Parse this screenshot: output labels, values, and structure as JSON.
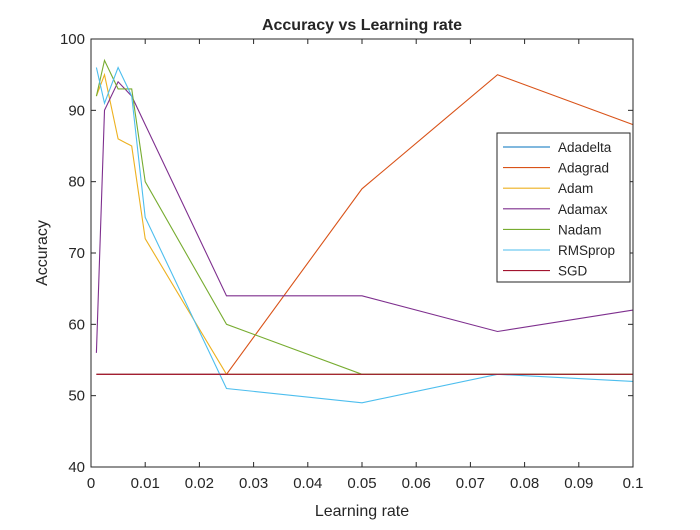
{
  "chart_data": {
    "type": "line",
    "title": "Accuracy vs Learning rate",
    "xlabel": "Learning rate",
    "ylabel": "Accuracy",
    "xlim": [
      0,
      0.1
    ],
    "ylim": [
      40,
      100
    ],
    "xticks": [
      0,
      0.01,
      0.02,
      0.03,
      0.04,
      0.05,
      0.06,
      0.07,
      0.08,
      0.09,
      0.1
    ],
    "xtick_labels": [
      "0",
      "0.01",
      "0.02",
      "0.03",
      "0.04",
      "0.05",
      "0.06",
      "0.07",
      "0.08",
      "0.09",
      "0.1"
    ],
    "yticks": [
      40,
      50,
      60,
      70,
      80,
      90,
      100
    ],
    "ytick_labels": [
      "40",
      "50",
      "60",
      "70",
      "80",
      "90",
      "100"
    ],
    "grid": false,
    "legend_position": "right",
    "x": [
      0.001,
      0.0025,
      0.005,
      0.0075,
      0.01,
      0.025,
      0.05,
      0.075,
      0.1
    ],
    "series": [
      {
        "name": "Adadelta",
        "color": "#0072BD",
        "values": [
          53,
          53,
          53,
          53,
          53,
          53,
          53,
          53,
          53
        ]
      },
      {
        "name": "Adagrad",
        "color": "#D95319",
        "values": [
          53,
          53,
          53,
          53,
          53,
          53,
          79,
          95,
          88
        ]
      },
      {
        "name": "Adam",
        "color": "#EDB120",
        "values": [
          92,
          95,
          86,
          85,
          72,
          53,
          53,
          53,
          53
        ]
      },
      {
        "name": "Adamax",
        "color": "#7E2F8E",
        "values": [
          56,
          90,
          94,
          92,
          88,
          64,
          64,
          59,
          62
        ]
      },
      {
        "name": "Nadam",
        "color": "#77AC30",
        "values": [
          92,
          97,
          93,
          93,
          80,
          60,
          53,
          53,
          53
        ]
      },
      {
        "name": "RMSprop",
        "color": "#4DBEEE",
        "values": [
          96,
          91,
          96,
          92,
          75,
          51,
          49,
          53,
          52
        ]
      },
      {
        "name": "SGD",
        "color": "#A2142F",
        "values": [
          53,
          53,
          53,
          53,
          53,
          53,
          53,
          53,
          53
        ]
      }
    ]
  }
}
